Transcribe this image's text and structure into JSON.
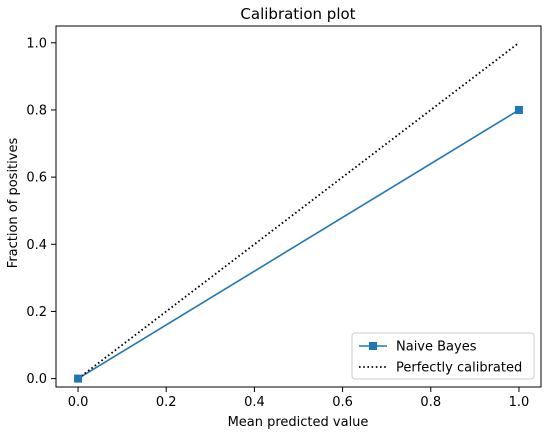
{
  "chart_data": {
    "type": "line",
    "title": "Calibration plot",
    "xlabel": "Mean predicted value",
    "ylabel": "Fraction of positives",
    "xlim": [
      -0.05,
      1.05
    ],
    "ylim": [
      -0.025,
      1.05
    ],
    "xticks": [
      0.0,
      0.2,
      0.4,
      0.6,
      0.8,
      1.0
    ],
    "xtick_labels": [
      "0.0",
      "0.2",
      "0.4",
      "0.6",
      "0.8",
      "1.0"
    ],
    "yticks": [
      0.0,
      0.2,
      0.4,
      0.6,
      0.8,
      1.0
    ],
    "ytick_labels": [
      "0.0",
      "0.2",
      "0.4",
      "0.6",
      "0.8",
      "1.0"
    ],
    "grid": false,
    "legend_position": "lower-right",
    "series": [
      {
        "name": "Naive Bayes",
        "x": [
          0.0,
          1.0
        ],
        "y": [
          0.0,
          0.8
        ],
        "color": "#1f77b4",
        "line_style": "solid",
        "marker": "square"
      },
      {
        "name": "Perfectly calibrated",
        "x": [
          0.0,
          1.0
        ],
        "y": [
          0.0,
          1.0
        ],
        "color": "#000000",
        "line_style": "dotted",
        "marker": "none"
      }
    ]
  }
}
